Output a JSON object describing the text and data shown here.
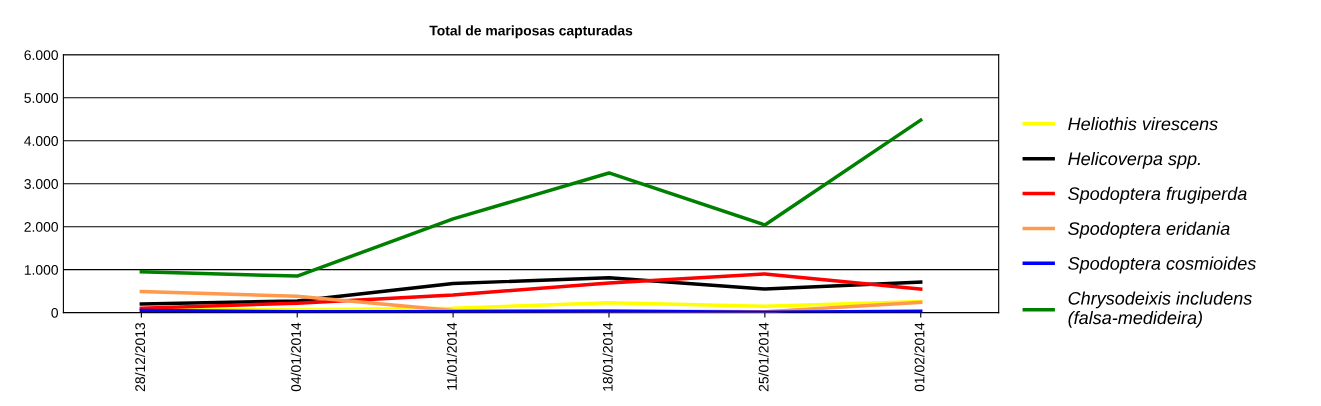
{
  "chart_data": {
    "type": "line",
    "title": "Total de mariposas capturadas",
    "categories": [
      "28/12/2013",
      "04/01/2014",
      "11/01/2014",
      "18/01/2014",
      "25/01/2014",
      "01/02/2014"
    ],
    "series": [
      {
        "name": "Heliothis virescens",
        "color": "#ffff00",
        "values": [
          60,
          70,
          100,
          230,
          150,
          260
        ]
      },
      {
        "name": "Helicoverpa spp.",
        "color": "#000000",
        "values": [
          200,
          270,
          680,
          810,
          550,
          710
        ]
      },
      {
        "name": "Spodoptera frugiperda",
        "color": "#ff0000",
        "values": [
          100,
          220,
          410,
          690,
          900,
          550
        ]
      },
      {
        "name": "Spodoptera eridania",
        "color": "#ff9a4d",
        "values": [
          490,
          380,
          50,
          40,
          20,
          240
        ]
      },
      {
        "name": "Spodoptera cosmioides",
        "color": "#0000ff",
        "values": [
          50,
          20,
          20,
          30,
          10,
          30
        ]
      },
      {
        "name": "Chrysodeixis includens\n(falsa-medideira)",
        "color": "#008000",
        "values": [
          950,
          850,
          2180,
          3250,
          2040,
          4480
        ]
      }
    ],
    "ylim": [
      0,
      6000
    ],
    "yticks": [
      0,
      {
        "value": 1000,
        "label": "1.000"
      },
      {
        "value": 2000,
        "label": "2.000"
      },
      {
        "value": 3000,
        "label": "3.000"
      },
      {
        "value": 4000,
        "label": "4.000"
      },
      {
        "value": 5000,
        "label": "5.000"
      },
      {
        "value": 6000,
        "label": "6.000"
      }
    ],
    "grid": "y",
    "legend": "right",
    "marker": "none",
    "line_style": "solid"
  }
}
